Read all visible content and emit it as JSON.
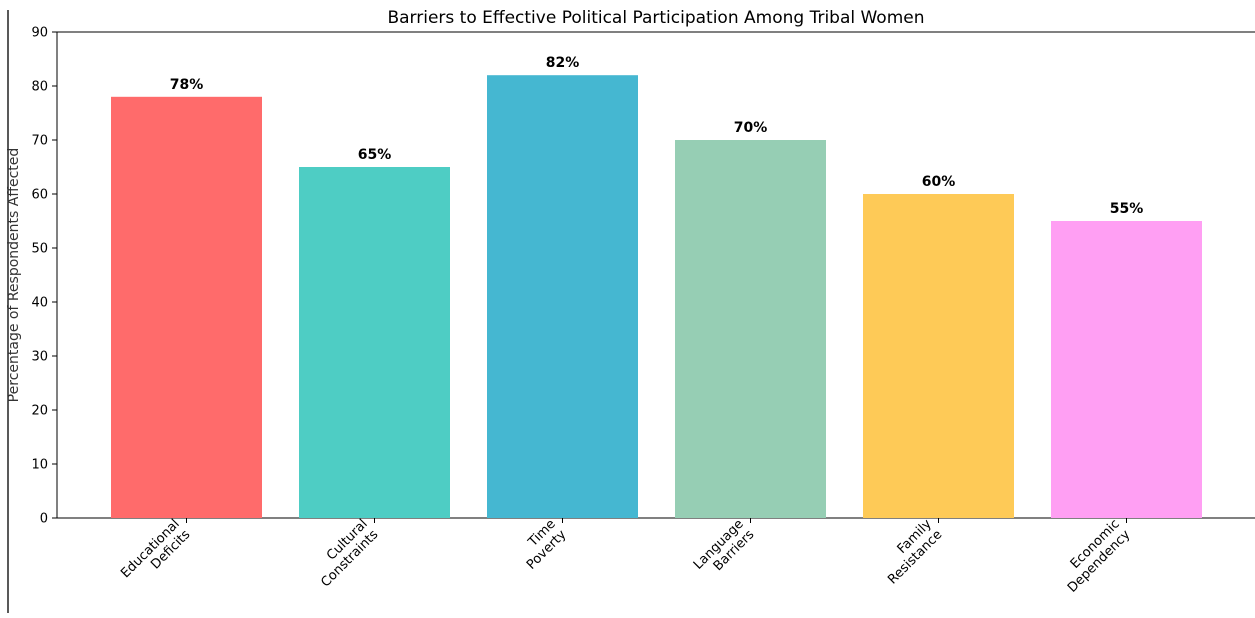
{
  "chart_data": {
    "type": "bar",
    "title": "Barriers to Effective Political Participation Among Tribal Women",
    "xlabel": "",
    "ylabel": "Percentage of Respondents Affected",
    "ylim": [
      0,
      90
    ],
    "yticks": [
      0,
      10,
      20,
      30,
      40,
      50,
      60,
      70,
      80,
      90
    ],
    "categories": [
      [
        "Educational",
        "Deficits"
      ],
      [
        "Cultural",
        "Constraints"
      ],
      [
        "Time",
        "Poverty"
      ],
      [
        "Language",
        "Barriers"
      ],
      [
        "Family",
        "Resistance"
      ],
      [
        "Economic",
        "Dependency"
      ]
    ],
    "values": [
      78,
      65,
      82,
      70,
      60,
      55
    ],
    "data_labels": [
      "78%",
      "65%",
      "82%",
      "70%",
      "60%",
      "55%"
    ],
    "colors": [
      "#ff6b6b",
      "#4ecdc4",
      "#45b7d1",
      "#96ceb4",
      "#feca57",
      "#ff9ff3"
    ],
    "grid": false,
    "legend": "none"
  }
}
